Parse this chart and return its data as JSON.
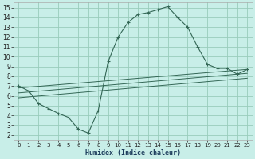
{
  "title": "",
  "xlabel": "Humidex (Indice chaleur)",
  "bg_color": "#c8eee8",
  "grid_color": "#99ccbb",
  "line_color": "#336655",
  "xlim": [
    -0.5,
    23.5
  ],
  "ylim": [
    1.5,
    15.5
  ],
  "xticks": [
    0,
    1,
    2,
    3,
    4,
    5,
    6,
    7,
    8,
    9,
    10,
    11,
    12,
    13,
    14,
    15,
    16,
    17,
    18,
    19,
    20,
    21,
    22,
    23
  ],
  "yticks": [
    2,
    3,
    4,
    5,
    6,
    7,
    8,
    9,
    10,
    11,
    12,
    13,
    14,
    15
  ],
  "line1_x": [
    0,
    1,
    2,
    3,
    4,
    5,
    6,
    7,
    8,
    9,
    10,
    11,
    12,
    13,
    14,
    15,
    16,
    17,
    18,
    19,
    20,
    21,
    22,
    23
  ],
  "line1_y": [
    7.0,
    6.5,
    5.2,
    4.7,
    4.2,
    3.8,
    2.6,
    2.2,
    4.5,
    9.5,
    12.0,
    13.5,
    14.3,
    14.5,
    14.8,
    15.1,
    14.0,
    13.0,
    11.0,
    9.2,
    8.8,
    8.8,
    8.2,
    8.7
  ],
  "line2_x": [
    0,
    23
  ],
  "line2_y": [
    6.8,
    8.7
  ],
  "line3_x": [
    0,
    23
  ],
  "line3_y": [
    6.3,
    8.3
  ],
  "line4_x": [
    0,
    23
  ],
  "line4_y": [
    5.8,
    7.8
  ],
  "figsize": [
    3.2,
    2.0
  ],
  "dpi": 100
}
